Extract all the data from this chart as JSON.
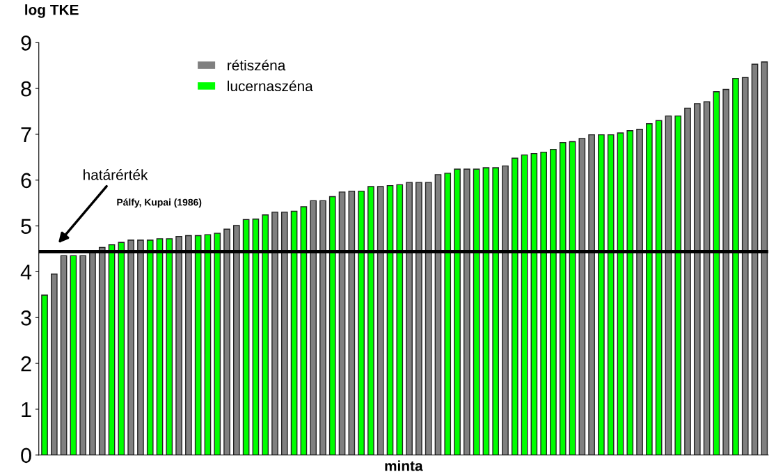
{
  "chart_data": {
    "type": "bar",
    "ylabel": "log TKE",
    "xlabel": "minta",
    "categories": [
      null,
      null,
      null,
      null,
      null,
      null,
      null,
      null,
      null,
      null,
      null,
      null,
      null,
      null,
      null,
      null,
      null,
      null,
      null,
      null,
      null,
      null,
      null,
      null,
      null,
      null,
      null,
      null,
      null,
      null,
      null,
      null,
      null,
      null,
      null,
      null,
      null,
      null,
      null,
      null,
      null,
      null,
      null,
      null,
      null,
      null,
      null,
      null,
      null,
      null,
      null,
      null,
      null,
      null,
      null,
      null,
      null,
      null,
      null,
      null,
      null,
      null,
      null,
      null,
      null,
      null,
      null,
      null,
      null,
      null,
      null,
      null,
      null,
      null,
      null,
      null
    ],
    "series": [
      {
        "name": "rétiszéna",
        "color": "#808080",
        "values": [
          null,
          3.95,
          4.35,
          null,
          4.35,
          4.42,
          4.53,
          null,
          null,
          4.69,
          4.69,
          null,
          null,
          null,
          4.77,
          4.79,
          null,
          null,
          null,
          4.93,
          5.01,
          null,
          null,
          null,
          5.3,
          5.3,
          null,
          null,
          5.55,
          5.55,
          null,
          5.74,
          5.76,
          null,
          null,
          5.86,
          null,
          null,
          5.95,
          5.95,
          5.95,
          6.12,
          null,
          null,
          6.24,
          null,
          null,
          null,
          6.31,
          null,
          null,
          null,
          null,
          null,
          null,
          null,
          6.91,
          6.99,
          null,
          null,
          null,
          null,
          7.11,
          null,
          null,
          7.4,
          null,
          7.57,
          7.67,
          7.71,
          null,
          7.98,
          null,
          8.24,
          8.53,
          8.58
        ]
      },
      {
        "name": "lucernaszéna",
        "color": "#00ff00",
        "values": [
          3.49,
          null,
          null,
          4.35,
          null,
          null,
          null,
          4.59,
          4.64,
          null,
          null,
          4.69,
          4.72,
          4.72,
          null,
          null,
          4.79,
          4.81,
          4.84,
          null,
          null,
          5.14,
          5.15,
          5.24,
          null,
          null,
          5.32,
          5.42,
          null,
          null,
          5.64,
          null,
          null,
          5.76,
          5.86,
          null,
          5.88,
          5.9,
          null,
          null,
          null,
          null,
          6.15,
          6.24,
          null,
          6.24,
          6.27,
          6.27,
          null,
          6.48,
          6.55,
          6.58,
          6.61,
          6.67,
          6.82,
          6.84,
          null,
          null,
          6.99,
          6.99,
          7.03,
          7.08,
          null,
          7.23,
          7.3,
          null,
          7.4,
          null,
          null,
          null,
          7.93,
          null,
          8.22,
          null,
          null,
          null
        ]
      }
    ],
    "ylim": [
      0,
      9
    ],
    "yticks": [
      0,
      1,
      2,
      3,
      4,
      5,
      6,
      7,
      8,
      9
    ],
    "grid": false,
    "legend": "top left",
    "ref_lines": [
      {
        "axis": "y",
        "value": 4.44,
        "color": "#000000"
      }
    ],
    "annotations": [
      "határérték",
      "Pálfy, Kupai (1986)"
    ]
  }
}
